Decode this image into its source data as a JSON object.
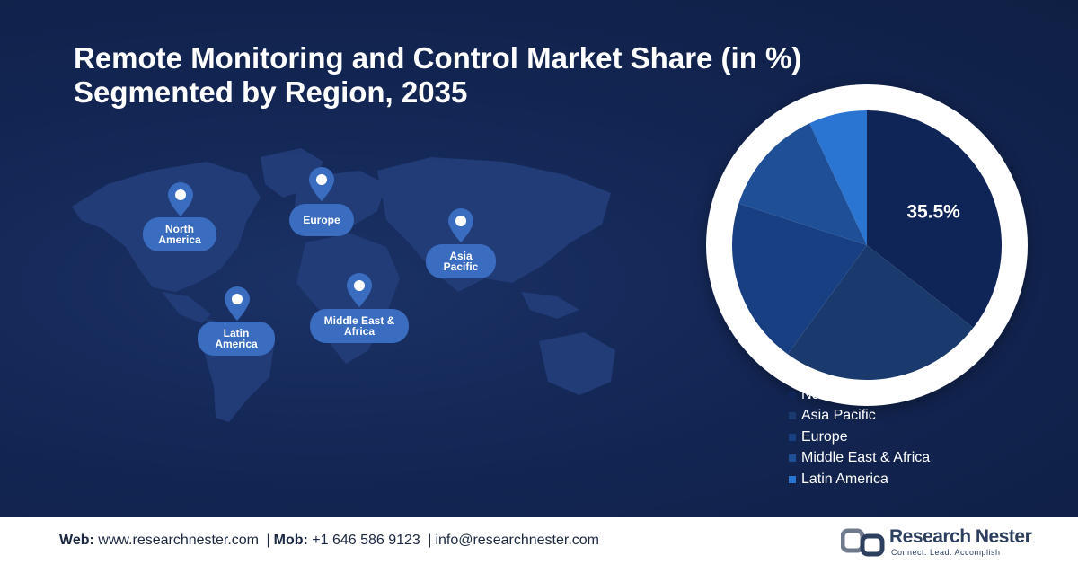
{
  "title_line1": "Remote Monitoring and Control Market Share (in %)",
  "title_line2": "Segmented by Region, 2035",
  "pins": [
    {
      "label": "North America"
    },
    {
      "label": "Europe"
    },
    {
      "label": "Asia Pacific"
    },
    {
      "label": "Middle East & Africa"
    },
    {
      "label": "Latin America"
    }
  ],
  "chart_data": {
    "type": "pie",
    "title": "Remote Monitoring and Control Market Share (in %) Segmented by Region, 2035",
    "slices": [
      {
        "name": "North America",
        "value": 35.5,
        "label": "35.5%",
        "color": "#0f2457"
      },
      {
        "name": "Asia Pacific",
        "value": 24.5,
        "label": "",
        "color": "#1a3a6e"
      },
      {
        "name": "Europe",
        "value": 20,
        "label": "",
        "color": "#173f82"
      },
      {
        "name": "Middle East & Africa",
        "value": 13,
        "label": "",
        "color": "#1f4f96"
      },
      {
        "name": "Latin America",
        "value": 7,
        "label": "",
        "color": "#2a74d2"
      }
    ],
    "legend": [
      "North America",
      "Asia Pacific",
      "Europe",
      "Middle East & Africa",
      "Latin America"
    ],
    "legend_position": "bottom-right"
  },
  "footer": {
    "web_label": "Web:",
    "web_value": "www.researchnester.com",
    "mob_label": "Mob:",
    "mob_value": "+1 646 586 9123",
    "email": "info@researchnester.com",
    "separator": "|",
    "brand_name": "Research Nester",
    "brand_tagline": "Connect. Lead. Accomplish"
  },
  "colors": {
    "background": "#0f1f44",
    "map": "#223d78",
    "pin": "#3a6cc0",
    "accent": "#2a74d2"
  }
}
